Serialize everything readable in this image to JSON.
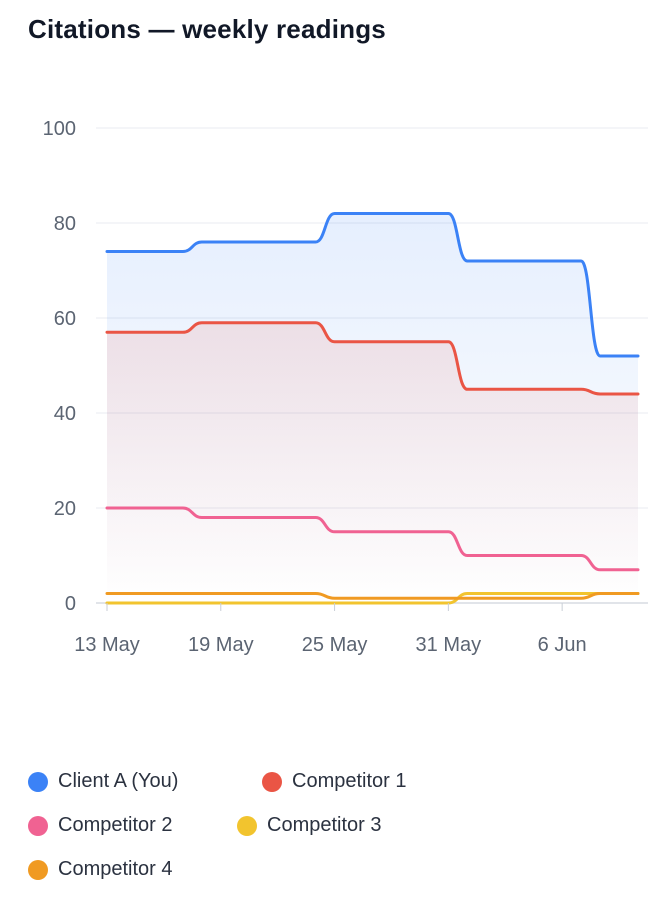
{
  "chart_data": {
    "type": "line",
    "title": "Citations — weekly readings",
    "xlabel": "",
    "ylabel": "",
    "ylim": [
      0,
      100
    ],
    "yticks": [
      "0",
      "20",
      "40",
      "60",
      "80",
      "100"
    ],
    "xticks": [
      {
        "date": "2024-05-13",
        "label": "13 May"
      },
      {
        "date": "2024-05-19",
        "label": "19 May"
      },
      {
        "date": "2024-05-25",
        "label": "25 May"
      },
      {
        "date": "2024-05-31",
        "label": "31 May"
      },
      {
        "date": "2024-06-06",
        "label": "6 Jun"
      }
    ],
    "xlim": [
      "2024-05-13",
      "2024-06-10"
    ],
    "grid": true,
    "legend_position": "bottom",
    "x": [
      "2024-05-13",
      "2024-05-14",
      "2024-05-15",
      "2024-05-16",
      "2024-05-17",
      "2024-05-18",
      "2024-05-19",
      "2024-05-20",
      "2024-05-21",
      "2024-05-22",
      "2024-05-23",
      "2024-05-24",
      "2024-05-25",
      "2024-05-26",
      "2024-05-27",
      "2024-05-28",
      "2024-05-29",
      "2024-05-30",
      "2024-05-31",
      "2024-06-01",
      "2024-06-02",
      "2024-06-03",
      "2024-06-04",
      "2024-06-05",
      "2024-06-06",
      "2024-06-07",
      "2024-06-08",
      "2024-06-09",
      "2024-06-10"
    ],
    "series": [
      {
        "name": "Client A (You)",
        "color": "#3b82f6",
        "fill": true,
        "values": [
          74,
          74,
          74,
          74,
          74,
          76,
          76,
          76,
          76,
          76,
          76,
          76,
          82,
          82,
          82,
          82,
          82,
          82,
          82,
          72,
          72,
          72,
          72,
          72,
          72,
          72,
          52,
          52,
          52
        ]
      },
      {
        "name": "Competitor 1",
        "color": "#ea5545",
        "fill": true,
        "values": [
          57,
          57,
          57,
          57,
          57,
          59,
          59,
          59,
          59,
          59,
          59,
          59,
          55,
          55,
          55,
          55,
          55,
          55,
          55,
          45,
          45,
          45,
          45,
          45,
          45,
          45,
          44,
          44,
          44
        ]
      },
      {
        "name": "Competitor 2",
        "color": "#f06292",
        "fill": false,
        "values": [
          20,
          20,
          20,
          20,
          20,
          18,
          18,
          18,
          18,
          18,
          18,
          18,
          15,
          15,
          15,
          15,
          15,
          15,
          15,
          10,
          10,
          10,
          10,
          10,
          10,
          10,
          7,
          7,
          7
        ]
      },
      {
        "name": "Competitor 3",
        "color": "#f2c42e",
        "fill": false,
        "values": [
          0,
          0,
          0,
          0,
          0,
          0,
          0,
          0,
          0,
          0,
          0,
          0,
          0,
          0,
          0,
          0,
          0,
          0,
          0,
          2,
          2,
          2,
          2,
          2,
          2,
          2,
          2,
          2,
          2
        ]
      },
      {
        "name": "Competitor 4",
        "color": "#f09a22",
        "fill": false,
        "values": [
          2,
          2,
          2,
          2,
          2,
          2,
          2,
          2,
          2,
          2,
          2,
          2,
          1,
          1,
          1,
          1,
          1,
          1,
          1,
          1,
          1,
          1,
          1,
          1,
          1,
          1,
          2,
          2,
          2
        ]
      }
    ]
  }
}
